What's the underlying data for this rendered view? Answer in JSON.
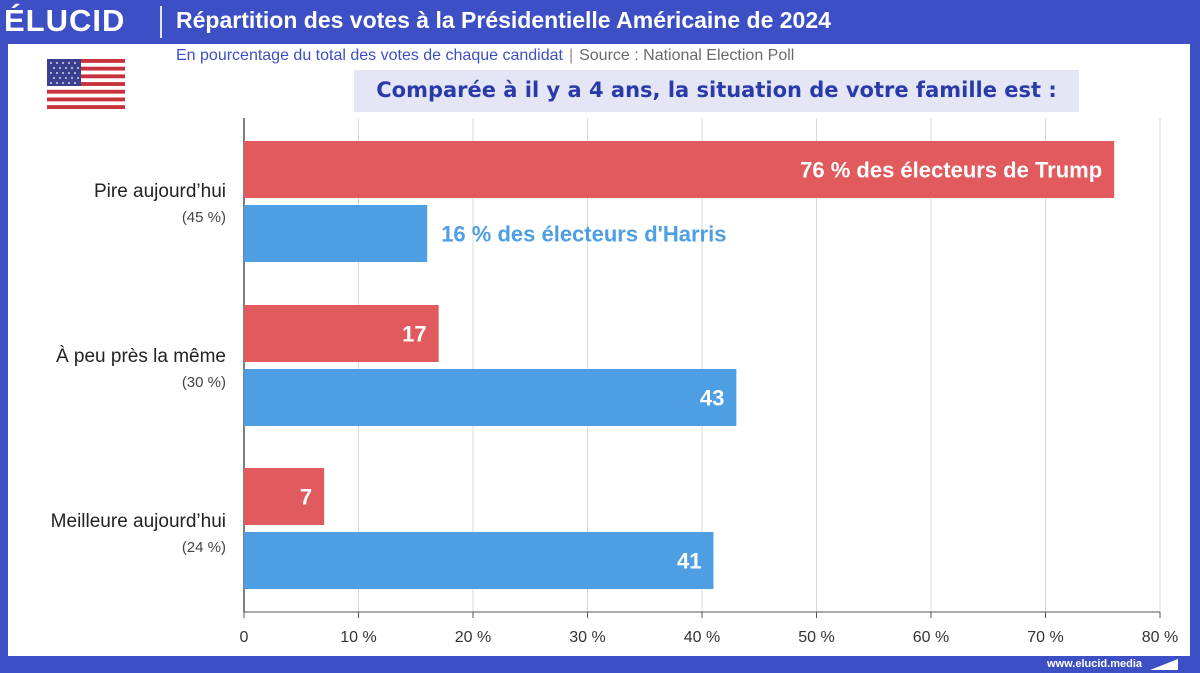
{
  "brand": "ÉLUCID",
  "header": {
    "title": "Répartition des votes à la Présidentielle Américaine de 2024",
    "subtitle": "En pourcentage du total des votes de chaque candidat",
    "separator": "|",
    "source": "Source : National Election Poll"
  },
  "question": "Comparée à il y a 4 ans, la situation de votre famille est :",
  "footer": {
    "url": "www.elucid.media"
  },
  "colors": {
    "trump": "#e05a5e",
    "harris": "#4e9ee3",
    "brand": "#3d4fc4"
  },
  "icons": {
    "flag": "us-flag-icon"
  },
  "chart_data": {
    "type": "bar",
    "orientation": "horizontal",
    "categories": [
      "Pire aujourd’hui",
      "À peu près la même",
      "Meilleure aujourd’hui"
    ],
    "category_shares": [
      "(45 %)",
      "(30 %)",
      "(24 %)"
    ],
    "series": [
      {
        "key": "trump",
        "values": [
          76,
          17,
          7
        ],
        "labels": [
          "76 % des électeurs de Trump",
          "17",
          "7"
        ]
      },
      {
        "key": "harris",
        "values": [
          16,
          43,
          41
        ],
        "labels": [
          "16 % des électeurs d'Harris",
          "43",
          "41"
        ]
      }
    ],
    "xlim": [
      0,
      80
    ],
    "xticks": [
      0,
      10,
      20,
      30,
      40,
      50,
      60,
      70,
      80
    ],
    "xtick_labels": [
      "0",
      "10 %",
      "20 %",
      "30 %",
      "40 %",
      "50 %",
      "60 %",
      "70 %",
      "80 %"
    ],
    "grid": true
  }
}
